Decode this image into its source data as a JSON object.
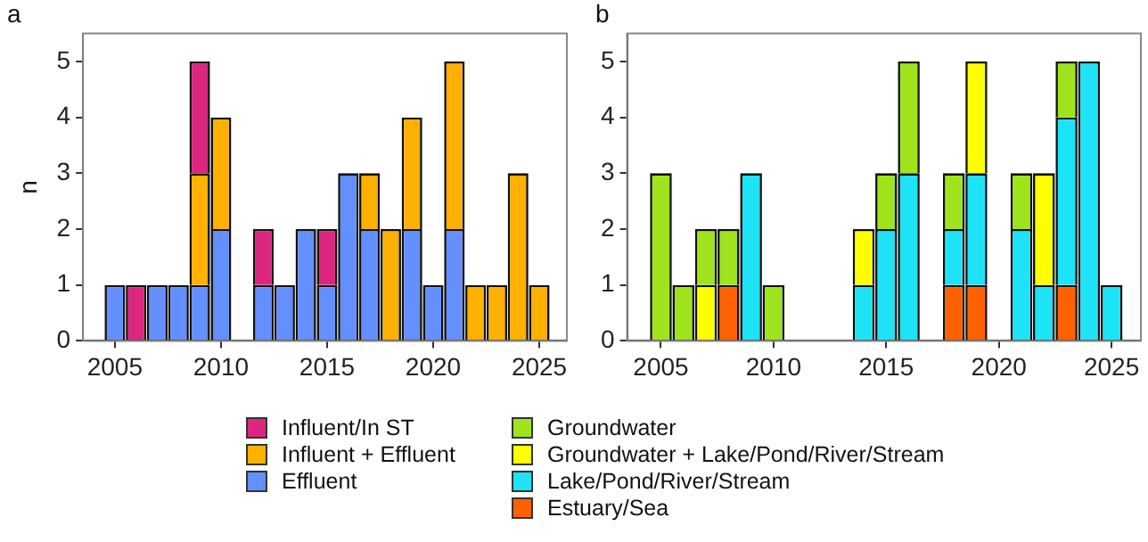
{
  "chart_data": [
    {
      "type": "bar",
      "title": "a",
      "ylabel": "n",
      "stacked": true,
      "legend": "bottom",
      "grid": false,
      "x": [
        2005,
        2006,
        2007,
        2008,
        2009,
        2010,
        2012,
        2013,
        2014,
        2015,
        2016,
        2017,
        2018,
        2019,
        2020,
        2021,
        2022,
        2023,
        2024,
        2025
      ],
      "series": [
        {
          "name": "Effluent",
          "color": "#648fff",
          "values": [
            1,
            null,
            1,
            1,
            1,
            2,
            1,
            1,
            2,
            1,
            3,
            2,
            null,
            2,
            1,
            2,
            null,
            null,
            null,
            null
          ]
        },
        {
          "name": "Influent + Effluent",
          "color": "#ffb000",
          "values": [
            null,
            null,
            null,
            null,
            2,
            2,
            null,
            null,
            null,
            null,
            null,
            1,
            2,
            2,
            null,
            3,
            1,
            1,
            3,
            1
          ]
        },
        {
          "name": "Influent/In ST",
          "color": "#dc267f",
          "values": [
            null,
            1,
            null,
            null,
            2,
            null,
            1,
            null,
            null,
            1,
            null,
            null,
            null,
            null,
            null,
            null,
            null,
            null,
            null,
            null
          ]
        }
      ],
      "xlim": [
        2003.5,
        2026.3
      ],
      "xticks": [
        2005,
        2010,
        2015,
        2020,
        2025
      ],
      "ylim": [
        0,
        5.5
      ],
      "yticks": [
        0,
        1,
        2,
        3,
        4,
        5
      ]
    },
    {
      "type": "bar",
      "title": "b",
      "stacked": true,
      "legend": "bottom",
      "grid": false,
      "x": [
        2005,
        2006,
        2007,
        2008,
        2009,
        2010,
        2014,
        2015,
        2016,
        2018,
        2019,
        2021,
        2022,
        2023,
        2024,
        2025
      ],
      "series": [
        {
          "name": "Estuary/Sea",
          "color": "#fe6100",
          "values": [
            null,
            null,
            null,
            1,
            null,
            null,
            null,
            null,
            null,
            1,
            1,
            null,
            null,
            1,
            null,
            null
          ]
        },
        {
          "name": "Lake/Pond/River/Stream",
          "color": "#1ee3f7",
          "values": [
            null,
            null,
            null,
            null,
            3,
            null,
            1,
            2,
            3,
            1,
            2,
            2,
            1,
            3,
            5,
            1
          ]
        },
        {
          "name": "Groundwater + Lake/Pond/River/Stream",
          "color": "#ffff00",
          "values": [
            null,
            null,
            1,
            null,
            null,
            null,
            1,
            null,
            null,
            null,
            2,
            null,
            2,
            null,
            null,
            null
          ]
        },
        {
          "name": "Groundwater",
          "color": "#9ee31c",
          "values": [
            3,
            1,
            1,
            1,
            null,
            1,
            null,
            1,
            2,
            1,
            null,
            1,
            null,
            1,
            null,
            null
          ]
        }
      ],
      "xlim": [
        2003.5,
        2026.3
      ],
      "xticks": [
        2005,
        2010,
        2015,
        2020,
        2025
      ],
      "ylim": [
        0,
        5.5
      ],
      "yticks": [
        0,
        1,
        2,
        3,
        4,
        5
      ]
    }
  ]
}
